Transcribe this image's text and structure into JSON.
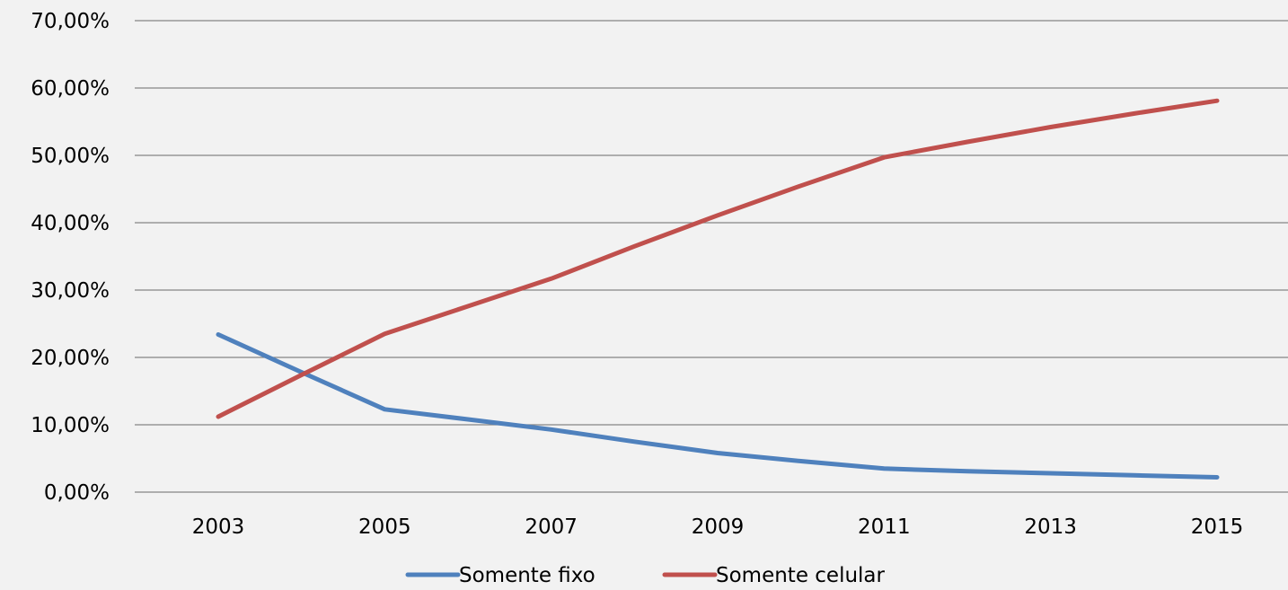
{
  "chart_data": {
    "type": "line",
    "categories": [
      "2003",
      "2005",
      "2007",
      "2009",
      "2011",
      "2013",
      "2015"
    ],
    "x": [
      2003,
      2004,
      2005,
      2006,
      2007,
      2008,
      2009,
      2010,
      2011,
      2012,
      2013,
      2014,
      2015
    ],
    "series": [
      {
        "name": "Somente fixo",
        "color": "#4f81bd",
        "values": [
          23.4,
          17.8,
          12.3,
          10.8,
          9.3,
          7.5,
          5.8,
          4.6,
          3.5,
          3.1,
          2.8,
          2.5,
          2.2
        ]
      },
      {
        "name": "Somente celular",
        "color": "#c0504d",
        "values": [
          11.2,
          17.4,
          23.5,
          27.6,
          31.7,
          36.5,
          41.1,
          45.5,
          49.7,
          52.0,
          54.2,
          56.2,
          58.1
        ]
      }
    ],
    "y_ticks": [
      "0,00%",
      "10,00%",
      "20,00%",
      "30,00%",
      "40,00%",
      "50,00%",
      "60,00%",
      "70,00%"
    ],
    "ylim": [
      0,
      70
    ],
    "grid": true,
    "legend_position": "bottom",
    "title": "",
    "xlabel": "",
    "ylabel": ""
  }
}
